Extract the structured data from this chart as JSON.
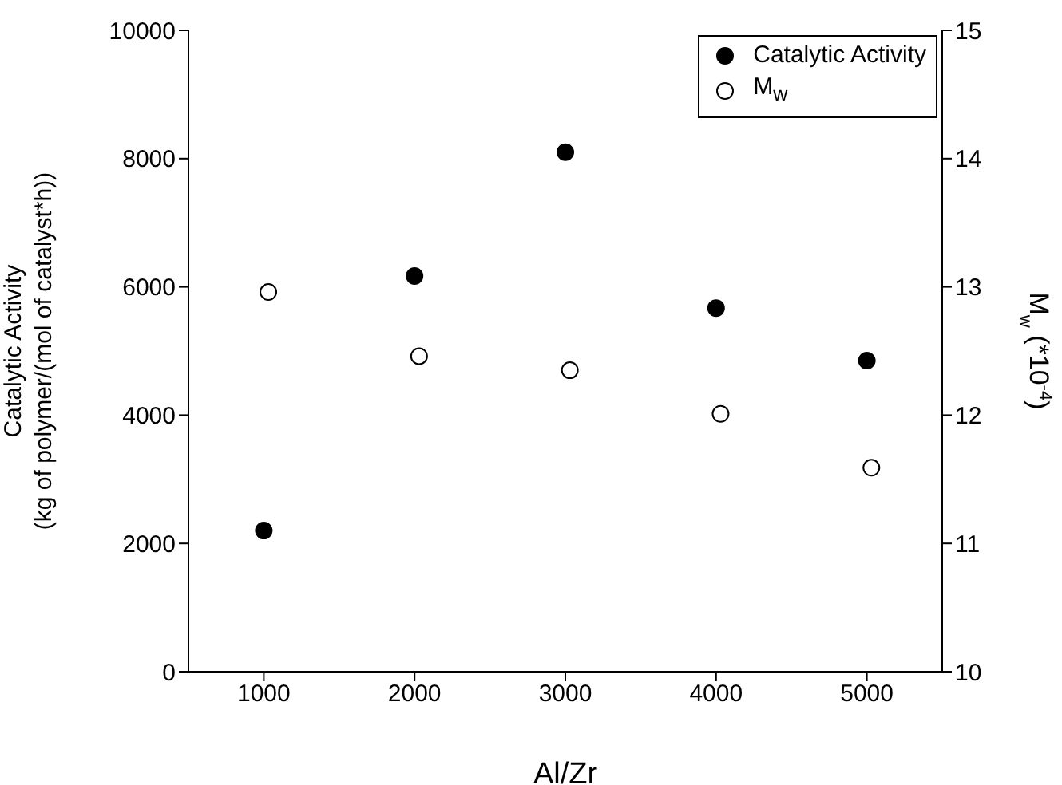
{
  "chart_data": {
    "type": "scatter",
    "xlabel": "Al/Zr",
    "ylabel": "Catalytic Activity\n(kg of polymer/(mol of catalyst*h))",
    "y2label": "M$_{w}$ (*10$^{-4}$)",
    "xlim": [
      500,
      5500
    ],
    "xticks": [
      1000,
      2000,
      3000,
      4000,
      5000
    ],
    "ylim": [
      0,
      10000
    ],
    "yticks": [
      0,
      2000,
      4000,
      6000,
      8000,
      10000
    ],
    "y2lim": [
      10,
      15
    ],
    "y2ticks": [
      10,
      11,
      12,
      13,
      14,
      15
    ],
    "series": [
      {
        "name": "Catalytic Activity",
        "color": "#000000",
        "x": [
          1000,
          2000,
          3000,
          4000,
          5000
        ],
        "values": [
          2200,
          6170,
          8100,
          5670,
          4850
        ]
      },
      {
        "name": "M$_{w}$",
        "color": "#ffffff",
        "axis": "y2",
        "x": [
          1030,
          2030,
          3030,
          4030,
          5030
        ],
        "values": [
          12.96,
          12.46,
          12.35,
          12.01,
          11.59
        ]
      }
    ],
    "marker": "circle",
    "grid": false,
    "legend": "top right"
  }
}
